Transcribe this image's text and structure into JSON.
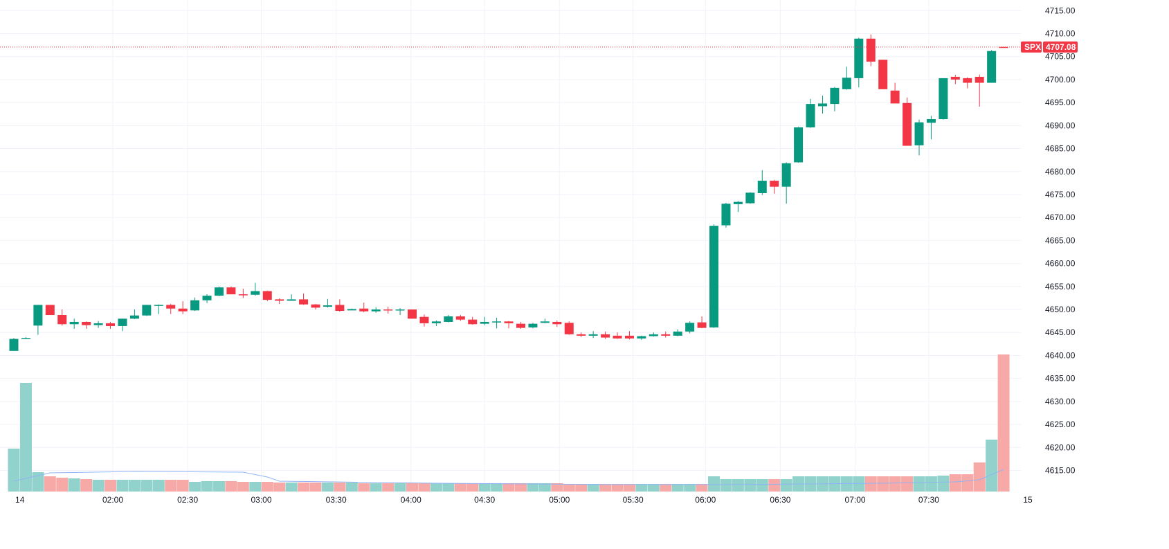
{
  "chart_data": {
    "type": "candlestick",
    "symbol": "SPX",
    "last_price": "4707.08",
    "last_price_value": 4707.08,
    "colors": {
      "up": "#089981",
      "down": "#f23645",
      "up_volume": "#92d2cc",
      "down_volume": "#f7a9a7",
      "volume_ma": "#90b4f5",
      "grid": "#f0f3fa"
    },
    "ylim": [
      4607.4,
      4717.3
    ],
    "y_ticks": [
      "4615.00",
      "4620.00",
      "4625.00",
      "4630.00",
      "4635.00",
      "4640.00",
      "4645.00",
      "4650.00",
      "4655.00",
      "4660.00",
      "4665.00",
      "4670.00",
      "4675.00",
      "4680.00",
      "4685.00",
      "4690.00",
      "4695.00",
      "4700.00",
      "4705.00",
      "4710.00",
      "4715.00"
    ],
    "x_ticks": [
      {
        "label": "14",
        "index": 0.5
      },
      {
        "label": "02:00",
        "index": 8.2
      },
      {
        "label": "02:30",
        "index": 14.4
      },
      {
        "label": "03:00",
        "index": 20.5
      },
      {
        "label": "03:30",
        "index": 26.7
      },
      {
        "label": "04:00",
        "index": 32.9
      },
      {
        "label": "04:30",
        "index": 39
      },
      {
        "label": "05:00",
        "index": 45.2
      },
      {
        "label": "05:30",
        "index": 51.3
      },
      {
        "label": "06:00",
        "index": 57.3
      },
      {
        "label": "06:30",
        "index": 63.5
      },
      {
        "label": "07:00",
        "index": 69.7
      },
      {
        "label": "07:30",
        "index": 75.8
      },
      {
        "label": "15",
        "index": 84
      }
    ],
    "volume_max": 215,
    "candles_ohlcv": [
      [
        4641.0,
        4643.8,
        4641.0,
        4643.6,
        62
      ],
      [
        4643.6,
        4644.0,
        4643.6,
        4643.8,
        157
      ],
      [
        4646.5,
        4651.0,
        4644.5,
        4651.0,
        28
      ],
      [
        4651.0,
        4651.0,
        4648.8,
        4648.8,
        22
      ],
      [
        4648.8,
        4650.0,
        4646.5,
        4646.8,
        20
      ],
      [
        4646.8,
        4648.0,
        4645.8,
        4647.3,
        19
      ],
      [
        4647.3,
        4647.4,
        4645.8,
        4646.6,
        18
      ],
      [
        4646.6,
        4647.5,
        4646.0,
        4647.0,
        17
      ],
      [
        4647.0,
        4647.3,
        4645.8,
        4646.4,
        17
      ],
      [
        4646.4,
        4648.0,
        4645.3,
        4648.0,
        17
      ],
      [
        4648.0,
        4650.0,
        4647.9,
        4648.7,
        17
      ],
      [
        4648.7,
        4651.0,
        4648.6,
        4651.0,
        17
      ],
      [
        4651.0,
        4651.1,
        4649.0,
        4651.0,
        17
      ],
      [
        4651.0,
        4651.2,
        4649.0,
        4650.2,
        17
      ],
      [
        4650.2,
        4651.8,
        4649.0,
        4649.6,
        17
      ],
      [
        4649.8,
        4652.6,
        4649.7,
        4652.0,
        14
      ],
      [
        4652.0,
        4653.3,
        4651.4,
        4653.0,
        15
      ],
      [
        4653.0,
        4655.0,
        4652.9,
        4654.8,
        15
      ],
      [
        4654.8,
        4655.0,
        4653.3,
        4653.3,
        15
      ],
      [
        4653.3,
        4654.5,
        4652.5,
        4653.2,
        14
      ],
      [
        4653.2,
        4655.8,
        4653.0,
        4654.0,
        14
      ],
      [
        4654.0,
        4654.1,
        4651.8,
        4652.1,
        14
      ],
      [
        4652.2,
        4652.4,
        4651.2,
        4651.9,
        13
      ],
      [
        4651.9,
        4653.3,
        4651.9,
        4652.2,
        13
      ],
      [
        4652.2,
        4653.5,
        4651.0,
        4651.1,
        13
      ],
      [
        4651.1,
        4651.2,
        4650.0,
        4650.4,
        13
      ],
      [
        4650.6,
        4652.3,
        4650.4,
        4650.9,
        13
      ],
      [
        4651.0,
        4652.2,
        4649.5,
        4649.7,
        13
      ],
      [
        4649.8,
        4650.2,
        4649.9,
        4650.1,
        13
      ],
      [
        4650.2,
        4651.5,
        4649.4,
        4649.6,
        12
      ],
      [
        4649.6,
        4650.5,
        4649.3,
        4650.0,
        12
      ],
      [
        4650.0,
        4650.6,
        4649.1,
        4649.8,
        12
      ],
      [
        4649.8,
        4650.3,
        4648.8,
        4650.0,
        12
      ],
      [
        4650.0,
        4650.0,
        4648.0,
        4648.0,
        12
      ],
      [
        4648.4,
        4648.9,
        4646.3,
        4647.0,
        12
      ],
      [
        4647.0,
        4647.6,
        4646.4,
        4647.4,
        12
      ],
      [
        4647.3,
        4648.8,
        4647.2,
        4648.5,
        12
      ],
      [
        4648.5,
        4648.8,
        4647.5,
        4647.8,
        12
      ],
      [
        4647.8,
        4648.4,
        4646.7,
        4646.8,
        12
      ],
      [
        4646.9,
        4648.4,
        4646.6,
        4647.3,
        12
      ],
      [
        4647.3,
        4648.2,
        4645.9,
        4647.4,
        12
      ],
      [
        4647.4,
        4647.5,
        4645.9,
        4647.0,
        12
      ],
      [
        4646.9,
        4647.3,
        4645.8,
        4646.0,
        12
      ],
      [
        4646.1,
        4647.1,
        4645.9,
        4646.9,
        12
      ],
      [
        4647.1,
        4648.0,
        4647.0,
        4647.4,
        12
      ],
      [
        4647.3,
        4647.6,
        4646.2,
        4646.8,
        12
      ],
      [
        4647.1,
        4647.4,
        4644.5,
        4644.6,
        11
      ],
      [
        4644.6,
        4645.0,
        4644.0,
        4644.3,
        11
      ],
      [
        4644.3,
        4645.3,
        4643.8,
        4644.6,
        11
      ],
      [
        4644.6,
        4645.2,
        4643.6,
        4643.9,
        11
      ],
      [
        4644.3,
        4645.0,
        4643.6,
        4643.7,
        11
      ],
      [
        4644.3,
        4645.3,
        4643.5,
        4643.7,
        11
      ],
      [
        4643.7,
        4644.3,
        4643.4,
        4644.2,
        11
      ],
      [
        4644.2,
        4645.0,
        4644.1,
        4644.6,
        11
      ],
      [
        4644.6,
        4645.2,
        4643.9,
        4644.3,
        11
      ],
      [
        4644.3,
        4645.7,
        4644.2,
        4645.2,
        11
      ],
      [
        4645.2,
        4647.4,
        4644.8,
        4647.1,
        11
      ],
      [
        4647.2,
        4648.5,
        4645.9,
        4646.0,
        11
      ],
      [
        4646.1,
        4668.5,
        4646.0,
        4668.2,
        22
      ],
      [
        4668.3,
        4673.2,
        4667.8,
        4673.0,
        18
      ],
      [
        4672.9,
        4673.6,
        4671.2,
        4673.4,
        18
      ],
      [
        4673.1,
        4675.5,
        4673.0,
        4675.4,
        18
      ],
      [
        4675.3,
        4680.3,
        4674.9,
        4678.0,
        18
      ],
      [
        4678.0,
        4678.2,
        4675.2,
        4676.7,
        18
      ],
      [
        4676.7,
        4682.0,
        4673.0,
        4681.8,
        18
      ],
      [
        4682.0,
        4689.7,
        4681.9,
        4689.6,
        22
      ],
      [
        4689.6,
        4695.8,
        4689.5,
        4694.7,
        22
      ],
      [
        4694.2,
        4696.5,
        4692.6,
        4694.8,
        22
      ],
      [
        4694.7,
        4698.4,
        4693.1,
        4698.2,
        22
      ],
      [
        4697.9,
        4702.8,
        4697.8,
        4700.4,
        22
      ],
      [
        4700.3,
        4709.1,
        4698.3,
        4708.9,
        22
      ],
      [
        4708.9,
        4709.8,
        4702.9,
        4703.9,
        22
      ],
      [
        4704.3,
        4704.3,
        4697.9,
        4697.9,
        22
      ],
      [
        4697.6,
        4699.3,
        4694.8,
        4694.8,
        22
      ],
      [
        4694.9,
        4696.1,
        4685.6,
        4685.6,
        22
      ],
      [
        4685.7,
        4691.3,
        4683.5,
        4690.7,
        22
      ],
      [
        4690.6,
        4692.1,
        4687.0,
        4691.4,
        22
      ],
      [
        4691.4,
        4700.3,
        4691.3,
        4700.3,
        23
      ],
      [
        4700.6,
        4701.0,
        4699.0,
        4700.0,
        25
      ],
      [
        4700.3,
        4700.5,
        4698.1,
        4699.3,
        25
      ],
      [
        4700.6,
        4701.1,
        4694.1,
        4699.3,
        42
      ],
      [
        4699.3,
        4706.4,
        4699.3,
        4706.2,
        75
      ],
      [
        4707.1,
        4707.1,
        4707.0,
        4707.08,
        198
      ]
    ],
    "volume_ma": [
      [
        0,
        15
      ],
      [
        3,
        27
      ],
      [
        10,
        29
      ],
      [
        19,
        28
      ],
      [
        21,
        21
      ],
      [
        22,
        15
      ],
      [
        35,
        12
      ],
      [
        50,
        10
      ],
      [
        58,
        10
      ],
      [
        66,
        11
      ],
      [
        72,
        12
      ],
      [
        78,
        14
      ],
      [
        80,
        17
      ],
      [
        82,
        32
      ]
    ]
  }
}
